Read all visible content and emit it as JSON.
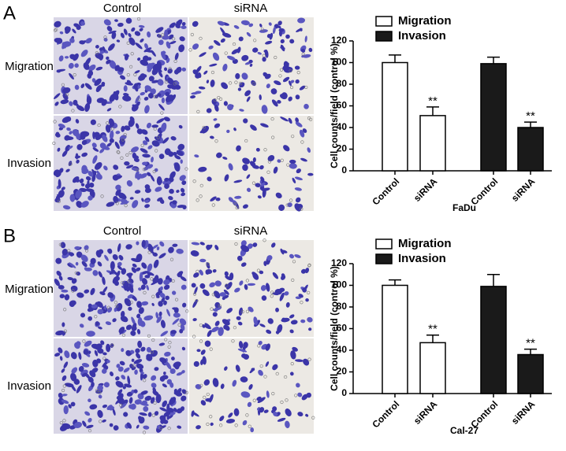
{
  "panels": [
    "A",
    "B"
  ],
  "images": {
    "columns": [
      "Control",
      "siRNA"
    ],
    "rows": [
      "Migration",
      "Invasion"
    ]
  },
  "chart_data": [
    {
      "type": "bar",
      "y_label": "Cell counts/field (control %)",
      "x_label": "FaDu",
      "categories": [
        "Control",
        "siRNA",
        "Control",
        "siRNA"
      ],
      "series": [
        {
          "name": "Migration",
          "color": "#ffffff",
          "values": [
            100,
            51,
            null,
            null
          ],
          "errors": [
            7,
            8,
            null,
            null
          ],
          "annotations": [
            null,
            "**",
            null,
            null
          ]
        },
        {
          "name": "Invasion",
          "color": "#1a1a1a",
          "values": [
            null,
            null,
            99,
            40
          ],
          "errors": [
            null,
            null,
            6,
            5
          ],
          "annotations": [
            null,
            null,
            null,
            "**"
          ]
        }
      ],
      "ylim": [
        0,
        120
      ],
      "yticks": [
        0,
        20,
        40,
        60,
        80,
        100,
        120
      ]
    },
    {
      "type": "bar",
      "y_label": "Cell counts/field (control %)",
      "x_label": "Cal-27",
      "categories": [
        "Control",
        "siRNA",
        "Control",
        "siRNA"
      ],
      "series": [
        {
          "name": "Migration",
          "color": "#ffffff",
          "values": [
            100,
            47,
            null,
            null
          ],
          "errors": [
            5,
            7,
            null,
            null
          ],
          "annotations": [
            null,
            "**",
            null,
            null
          ]
        },
        {
          "name": "Invasion",
          "color": "#1a1a1a",
          "values": [
            null,
            null,
            99,
            36
          ],
          "errors": [
            null,
            null,
            11,
            5
          ],
          "annotations": [
            null,
            null,
            null,
            "**"
          ]
        }
      ],
      "ylim": [
        0,
        120
      ],
      "yticks": [
        0,
        20,
        40,
        60,
        80,
        100,
        120
      ]
    }
  ]
}
